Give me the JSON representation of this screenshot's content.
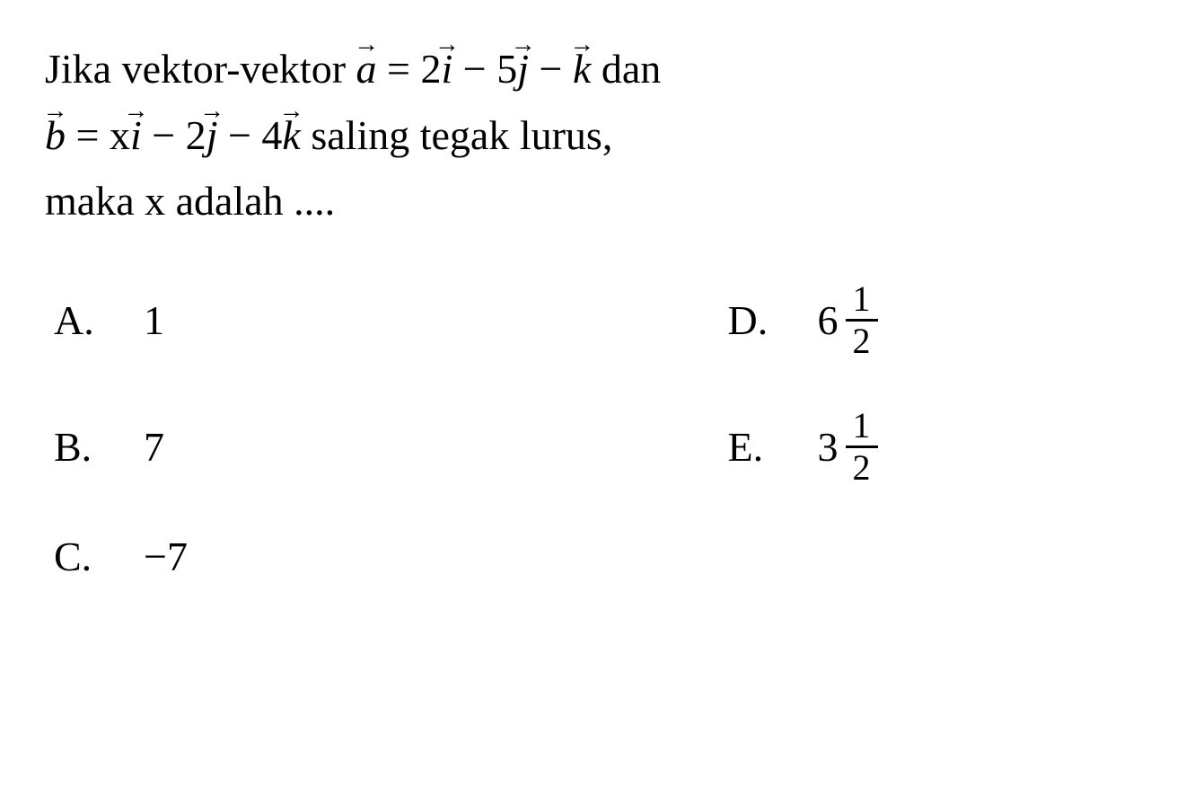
{
  "question": {
    "line1_prefix": "Jika vektor-vektor ",
    "vec_a": "a",
    "eq1": " = 2",
    "vec_i1": "i",
    "minus1": " − 5",
    "vec_j1": "j",
    "minus2": " − ",
    "vec_k1": "k",
    "line1_suffix": " dan",
    "vec_b": "b",
    "eq2": " = x",
    "vec_i2": "i",
    "minus3": " − 2",
    "vec_j2": "j",
    "minus4": " − 4",
    "vec_k2": "k",
    "line2_suffix": " saling tegak lurus,",
    "line3": "maka x adalah ...."
  },
  "options": {
    "a": {
      "label": "A.",
      "value": "1"
    },
    "b": {
      "label": "B.",
      "value": "7"
    },
    "c": {
      "label": "C.",
      "value": "−7"
    },
    "d": {
      "label": "D.",
      "whole": "6",
      "num": "1",
      "den": "2"
    },
    "e": {
      "label": "E.",
      "whole": "3",
      "num": "1",
      "den": "2"
    }
  },
  "style": {
    "background_color": "#ffffff",
    "text_color": "#000000",
    "question_fontsize": 46,
    "option_fontsize": 46,
    "fraction_fontsize": 40,
    "font_family": "Georgia, Times New Roman, serif"
  }
}
